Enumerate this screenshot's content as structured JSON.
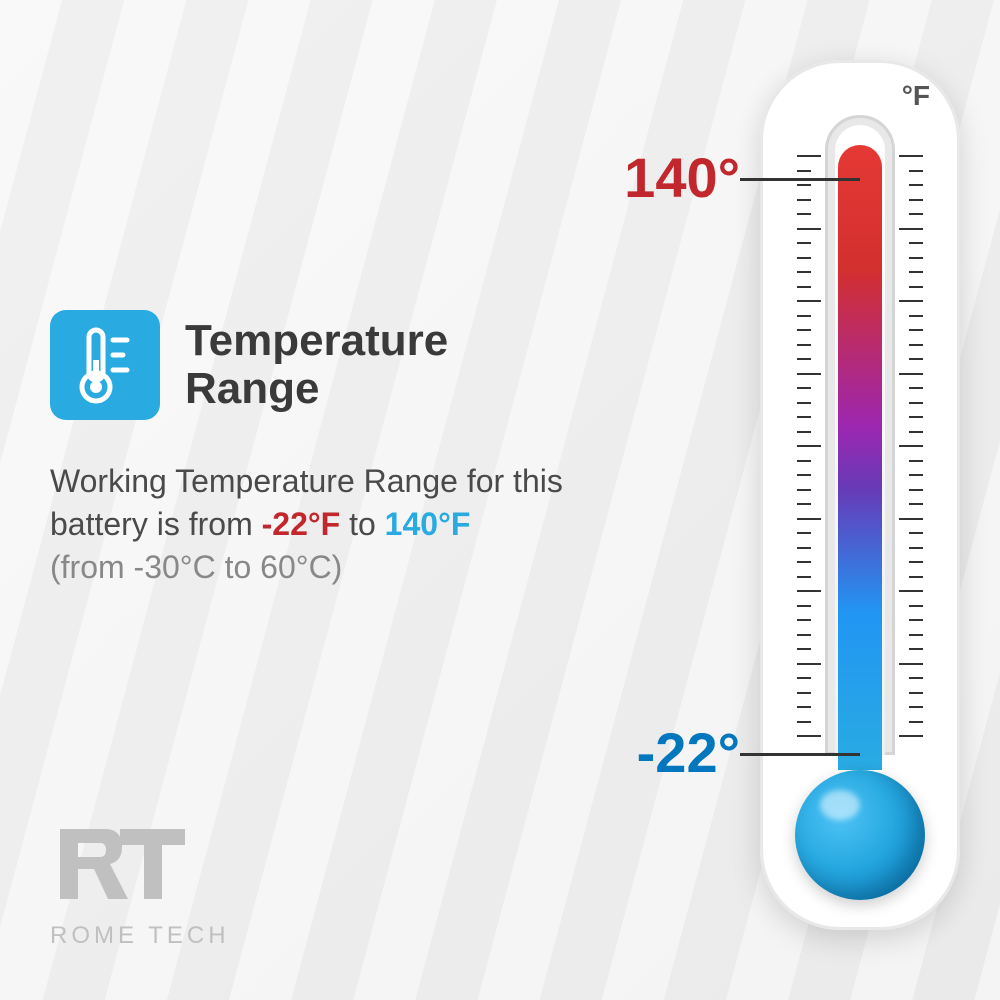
{
  "title": "Temperature\nRange",
  "description": {
    "text_prefix": "Working Temperature Range for this battery is from ",
    "cold_value": "-22°F",
    "mid_text": " to ",
    "hot_value": "140°F",
    "celsius_text": "(from -30°C to 60°C)"
  },
  "thermometer": {
    "unit": "°F",
    "high_label": "140°",
    "low_label": "-22°",
    "gradient_colors": [
      "#e53935",
      "#d32f2f",
      "#9c27b0",
      "#673ab7",
      "#2196f3",
      "#29abe2"
    ],
    "bulb_color": "#29abe2",
    "body_color": "#ffffff",
    "tick_count": 40,
    "major_tick_interval": 5
  },
  "icon": {
    "bg_color": "#29abe2",
    "fg_color": "#ffffff"
  },
  "colors": {
    "cold_text": "#c1272d",
    "hot_text": "#29abe2",
    "title_text": "#3a3a3a",
    "body_text": "#4a4a4a",
    "muted_text": "#888888",
    "logo": "#c0c0c0"
  },
  "logo": {
    "mark": "RT",
    "text": "ROME TECH"
  }
}
